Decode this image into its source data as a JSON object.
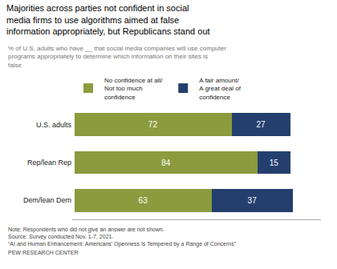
{
  "chart_data": {
    "type": "bar",
    "orientation": "horizontal",
    "stacked": true,
    "data_labels": true,
    "legend": "top",
    "grid": false,
    "tick_labels": "y",
    "title": "Majorities across parties not confident in social\nmedia firms to use algorithms aimed at false\ninformation appropriately, but Republicans stand out",
    "subtitle": "% of U.S. adults who have __ that social media companies will use computer\nprograms appropriately to determine which information on their sites is\nfalse",
    "categories": [
      "U.S. adults",
      "Rep/lean Rep",
      "Dem/lean Dem"
    ],
    "series": [
      {
        "name": "No confidence at all/\nNot too much\nconfidence",
        "color": "#8b9b3e",
        "values": [
          72,
          84,
          63
        ]
      },
      {
        "name": "A fair amount/\nA great deal of\nconfidence",
        "color": "#243f6e",
        "values": [
          27,
          15,
          37
        ]
      }
    ],
    "xlim": [
      -1,
      113
    ],
    "annotations": [
      "Note: Respondents who did not give an answer are not shown.",
      "Source: Survey conducted Nov. 1-7, 2021.",
      "“AI and Human Enhancement: Americans’ Openness Is Tempered by a Range of Concerns”",
      "PEW RESEARCH CENTER"
    ]
  }
}
